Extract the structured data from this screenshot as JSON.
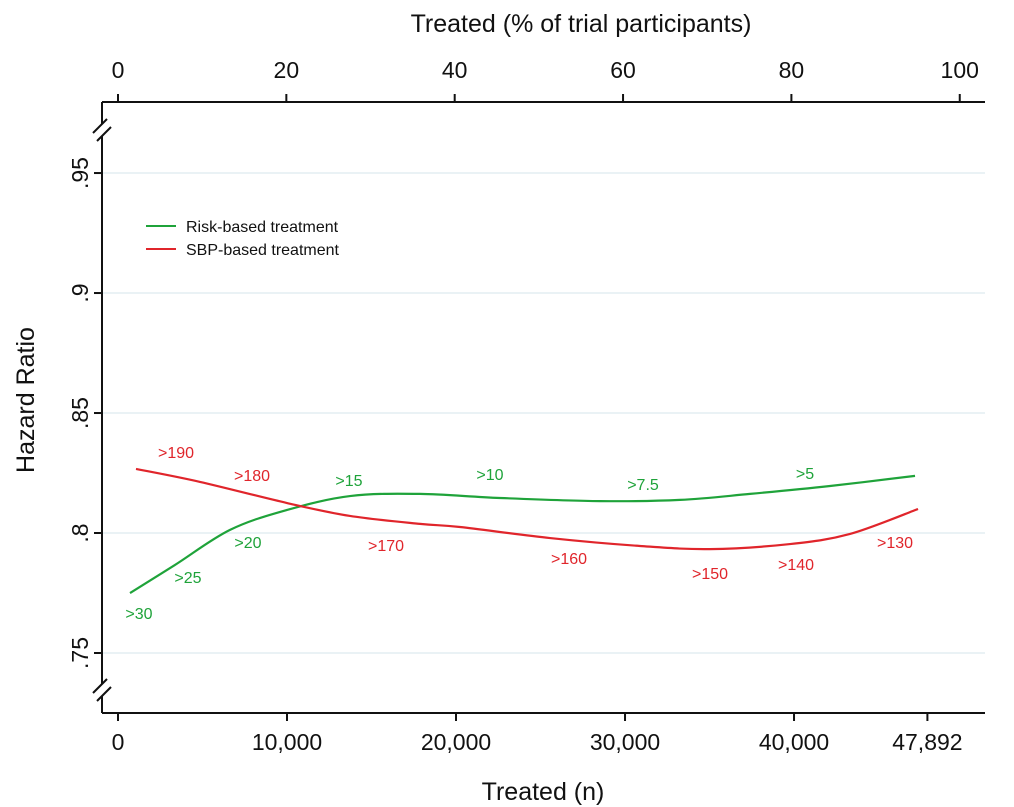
{
  "chart_data": {
    "type": "line",
    "x_label": "Treated (n)",
    "x2_label": "Treated (% of trial participants)",
    "y_label": "Hazard Ratio",
    "xlim": [
      -947,
      51300
    ],
    "xticks": [
      {
        "value": 0,
        "label": "0"
      },
      {
        "value": 10000,
        "label": "10,000"
      },
      {
        "value": 20000,
        "label": "20,000"
      },
      {
        "value": 30000,
        "label": "30,000"
      },
      {
        "value": 40000,
        "label": "40,000"
      },
      {
        "value": 47892,
        "label": "47,892"
      }
    ],
    "x2lim": [
      -1.9,
      103
    ],
    "x2ticks": [
      0,
      20,
      40,
      60,
      80,
      100
    ],
    "ylim": [
      0.725,
      0.9796
    ],
    "yticks": [
      {
        "value": 0.75,
        "label": ".75"
      },
      {
        "value": 0.8,
        "label": ".8"
      },
      {
        "value": 0.85,
        "label": ".85"
      },
      {
        "value": 0.9,
        "label": ".9"
      },
      {
        "value": 0.95,
        "label": ".95"
      }
    ],
    "grid": true,
    "legend": "upper left",
    "series": [
      {
        "name": "Risk-based treatment",
        "color": "#1fa33a",
        "x": [
          710,
          3373,
          6627,
          10000,
          13728,
          17870,
          22604,
          28521,
          33254,
          37396,
          42130,
          47160
        ],
        "values": [
          0.775,
          0.7867,
          0.8013,
          0.8096,
          0.8154,
          0.8163,
          0.8146,
          0.8133,
          0.8138,
          0.8163,
          0.8196,
          0.8238
        ],
        "annotations": [
          ">30",
          ">25",
          ">20",
          ">15",
          ">10",
          ">7.5",
          ">5"
        ]
      },
      {
        "name": "SBP-based treatment",
        "color": "#e0252b",
        "x": [
          1065,
          4852,
          10000,
          13728,
          17870,
          20237,
          25562,
          30888,
          35030,
          39763,
          43314,
          47337
        ],
        "values": [
          0.8267,
          0.8213,
          0.8125,
          0.8071,
          0.8038,
          0.8025,
          0.7979,
          0.7946,
          0.7933,
          0.7954,
          0.7996,
          0.81
        ],
        "annotations": [
          ">190",
          ">180",
          ">170",
          ">160",
          ">150",
          ">140",
          ">130"
        ]
      }
    ]
  }
}
